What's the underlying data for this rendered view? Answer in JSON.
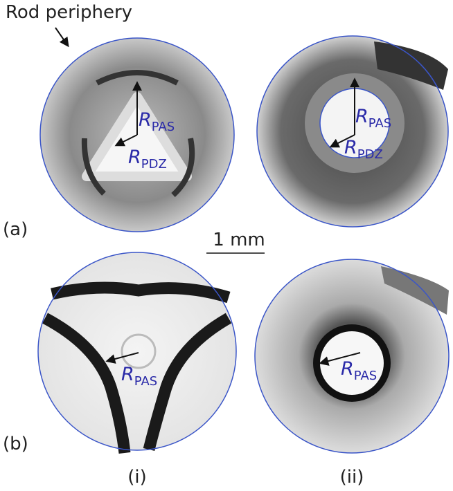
{
  "annotation": "Rod periphery",
  "row_labels": [
    "(a)",
    "(b)"
  ],
  "column_labels": [
    "(i)",
    "(ii)"
  ],
  "scale_bar": "1 mm",
  "panels": [
    {
      "labels": [
        {
          "symbol": "R",
          "subscript": "PAS"
        },
        {
          "symbol": "R",
          "subscript": "PDZ"
        }
      ]
    },
    {
      "labels": [
        {
          "symbol": "R",
          "subscript": "PAS"
        },
        {
          "symbol": "R",
          "subscript": "PDZ"
        }
      ]
    },
    {
      "labels": [
        {
          "symbol": "R",
          "subscript": "PAS"
        }
      ]
    },
    {
      "labels": [
        {
          "symbol": "R",
          "subscript": "PAS"
        }
      ]
    }
  ]
}
